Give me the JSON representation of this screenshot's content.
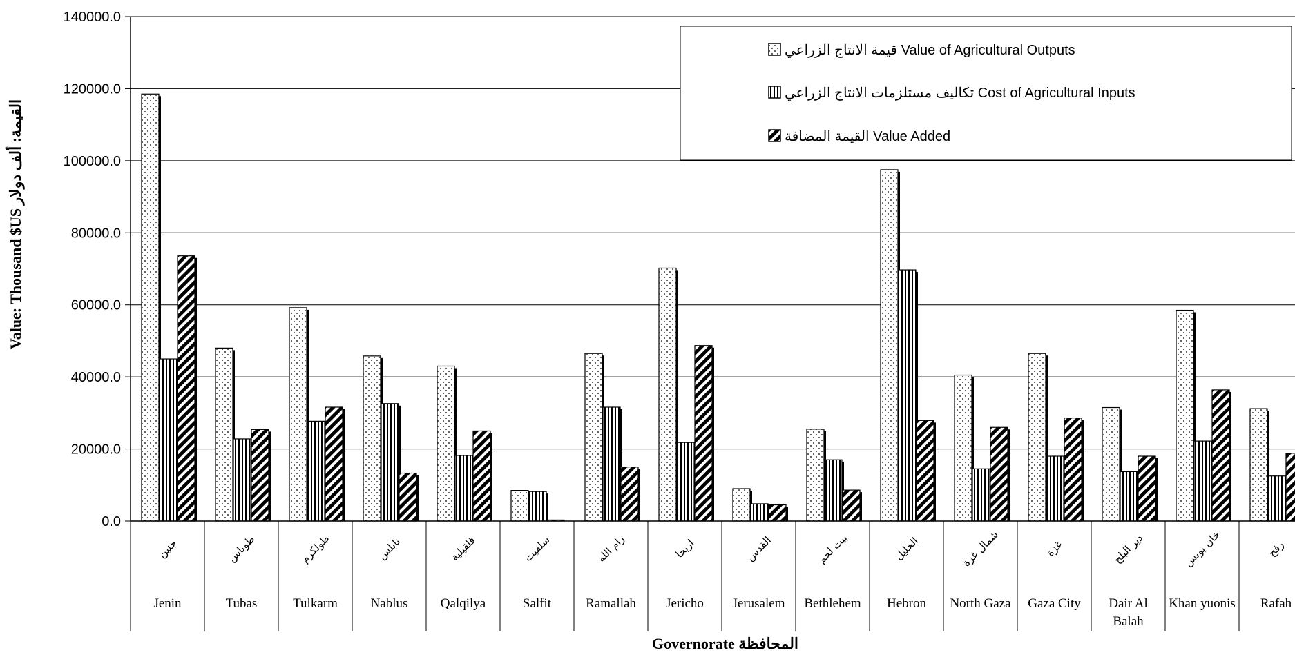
{
  "chart_data": {
    "type": "bar",
    "title": "",
    "xlabel": "Governorate   المحافظة",
    "ylabel": "Value: Thousand $US   القيمة: ألف دولار",
    "ylim": [
      0,
      140000
    ],
    "yticks": [
      "0.0",
      "20000.0",
      "40000.0",
      "60000.0",
      "80000.0",
      "100000.0",
      "120000.0",
      "140000.0"
    ],
    "grid": true,
    "legend_position": "top-right",
    "categories": [
      "Jenin",
      "Tubas",
      "Tulkarm",
      "Nablus",
      "Qalqilya",
      "Salfit",
      "Ramallah",
      "Jericho",
      "Jerusalem",
      "Bethlehem",
      "Hebron",
      "North Gaza",
      "Gaza City",
      "Dair Al Balah",
      "Khan yuonis",
      "Rafah"
    ],
    "categories_ar": [
      "جنين",
      "طوباس",
      "طولكرم",
      "نابلس",
      "قلقيلية",
      "سلفيت",
      "رام الله",
      "اريحا",
      "القدس",
      "بيت لحم",
      "الخليل",
      "شمال غزة",
      "غزة",
      "دير البلح",
      "خان يونس",
      "رفح"
    ],
    "series": [
      {
        "name": "Value of Agricultural Outputs قيمة الانتاج الزراعي",
        "pattern": "dots",
        "values": [
          118500,
          48000,
          59200,
          45800,
          43000,
          8500,
          46500,
          70200,
          9000,
          25500,
          97500,
          40500,
          46500,
          31500,
          58500,
          31200
        ]
      },
      {
        "name": "Cost of Agricultural Inputs تكاليف مستلزمات الانتاج الزراعي",
        "pattern": "vertical-stripes",
        "values": [
          45000,
          22800,
          27700,
          32600,
          18200,
          8200,
          31600,
          21800,
          4800,
          17000,
          69700,
          14500,
          18000,
          13700,
          22200,
          12500
        ]
      },
      {
        "name": "Value Added القيمة المضافة",
        "pattern": "diagonal-stripes",
        "values": [
          73600,
          25400,
          31600,
          13300,
          25000,
          300,
          15000,
          48700,
          4500,
          8600,
          27900,
          26000,
          28600,
          18000,
          36400,
          18800
        ]
      }
    ]
  },
  "legend": {
    "items": [
      {
        "label": "قيمة الانتاج الزراعي Value of Agricultural Outputs",
        "pattern": "dots"
      },
      {
        "label": "تكاليف مستلزمات الانتاج الزراعي Cost of Agricultural Inputs",
        "pattern": "vertical-stripes"
      },
      {
        "label": "القيمة المضافة Value Added",
        "pattern": "diagonal-stripes"
      }
    ]
  },
  "colors": {
    "axis": "#000000",
    "grid": "#000000",
    "bar_outline": "#000000",
    "background": "#ffffff"
  }
}
